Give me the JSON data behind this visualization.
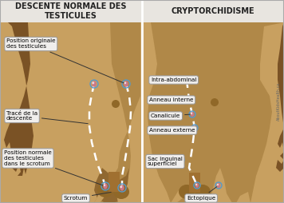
{
  "fig_width": 3.56,
  "fig_height": 2.54,
  "dpi": 100,
  "header_bg": "#e8e5e0",
  "header_left": "DESCENTE NORMALE DES\nTESTICULES",
  "header_right": "CRYPTORCHIDISME",
  "header_fontsize": 7.0,
  "panel_bg": "#c8a060",
  "body_main": "#a07840",
  "body_dark": "#704010",
  "body_shadow": "#886030",
  "body_mid": "#b08848",
  "leg_color": "#c0945a",
  "scrotum_color": "#8B6530",
  "arm_color": "#7B5020",
  "label_bg": "#f0eeec",
  "label_border": "#999999",
  "label_fontsize": 5.2,
  "dot_outer": "#5599cc",
  "dot_inner": "#cc7788",
  "dashed_color": "white",
  "copyright": "AboutKidsHealth.ca"
}
